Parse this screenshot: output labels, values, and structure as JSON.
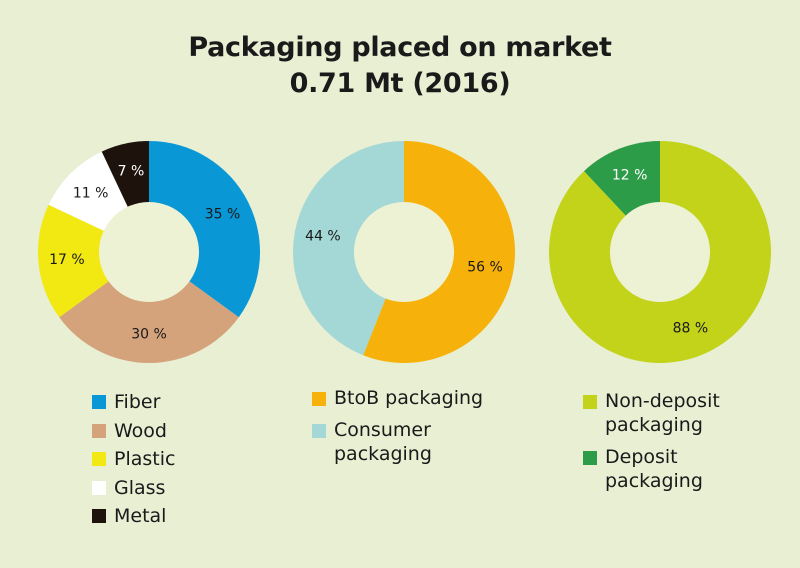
{
  "title": {
    "line1": "Packaging placed on market",
    "line2": "0.71 Mt (2016)"
  },
  "chart_data": [
    {
      "type": "pie",
      "donut": true,
      "categories": [
        "Fiber",
        "Wood",
        "Plastic",
        "Glass",
        "Metal"
      ],
      "values": [
        35,
        30,
        17,
        11,
        7
      ],
      "labels": [
        "35 %",
        "30 %",
        "17 %",
        "11 %",
        "7 %"
      ],
      "colors": [
        "#0a97d6",
        "#d4a37c",
        "#f2e812",
        "#ffffff",
        "#1e120c"
      ],
      "legend": "bottom"
    },
    {
      "type": "pie",
      "donut": true,
      "categories": [
        "BtoB packaging",
        "Consumer\npackaging"
      ],
      "values": [
        56,
        44
      ],
      "labels": [
        "56 %",
        "44 %"
      ],
      "colors": [
        "#f6b10b",
        "#a3d8d6"
      ],
      "legend": "bottom"
    },
    {
      "type": "pie",
      "donut": true,
      "categories": [
        "Non-deposit\npackaging",
        "Deposit\npackaging"
      ],
      "values": [
        88,
        12
      ],
      "labels": [
        "88 %",
        "12 %"
      ],
      "colors": [
        "#c2d31a",
        "#2d9c48"
      ],
      "legend": "bottom"
    }
  ]
}
